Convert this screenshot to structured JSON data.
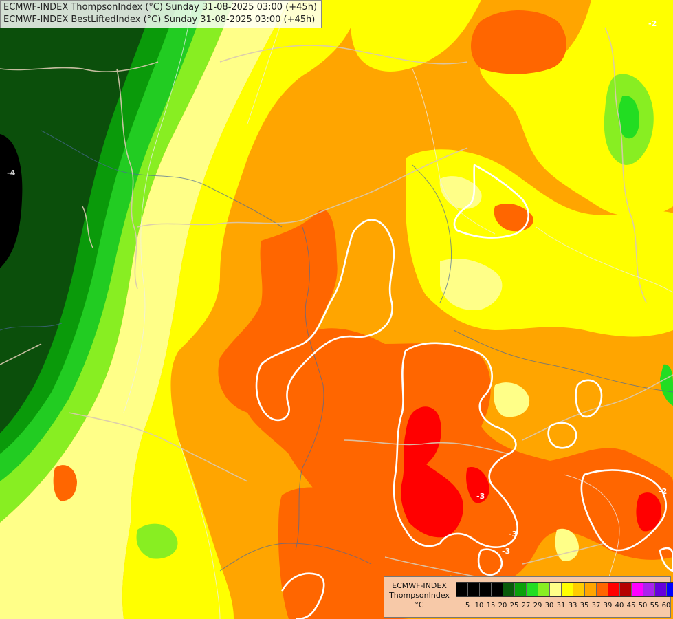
{
  "header": {
    "line1": "ECMWF-INDEX ThompsonIndex (°C) Sunday 31-08-2025 03:00 (+45h)",
    "line2": "ECMWF-INDEX BestLiftedIndex (°C) Sunday 31-08-2025 03:00 (+45h)"
  },
  "legend": {
    "model": "ECMWF-INDEX",
    "parameter": "ThompsonIndex",
    "unit": "°C",
    "colors": [
      "#000000",
      "#000000",
      "#000000",
      "#000000",
      "#0a5a0a",
      "#0aa00a",
      "#22dd22",
      "#88ee22",
      "#ffff88",
      "#ffff00",
      "#ffcc00",
      "#ffa500",
      "#ff6600",
      "#ff0000",
      "#b40000",
      "#ff00ff",
      "#aa22ee",
      "#6600dd",
      "#0000ff"
    ],
    "labels": [
      "5",
      "10",
      "15",
      "20",
      "25",
      "27",
      "29",
      "30",
      "31",
      "33",
      "35",
      "37",
      "39",
      "40",
      "45",
      "50",
      "55",
      "60"
    ]
  },
  "map": {
    "contour_labels": [
      "-4",
      "-2",
      "-3",
      "-2",
      "-3",
      "-3"
    ]
  }
}
